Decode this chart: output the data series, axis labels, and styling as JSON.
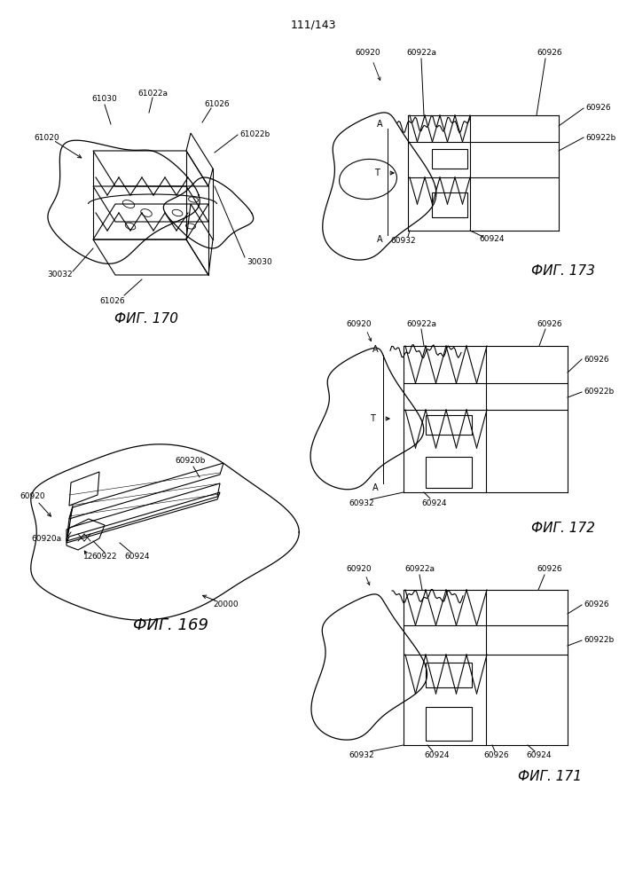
{
  "page_number": "111/143",
  "bg": "#ffffff",
  "fig170_label": "ФИГ. 170",
  "fig169_label": "ФИГ. 169",
  "fig171_label": "ФИГ. 171",
  "fig172_label": "ФИГ. 172",
  "fig173_label": "ФИГ. 173"
}
